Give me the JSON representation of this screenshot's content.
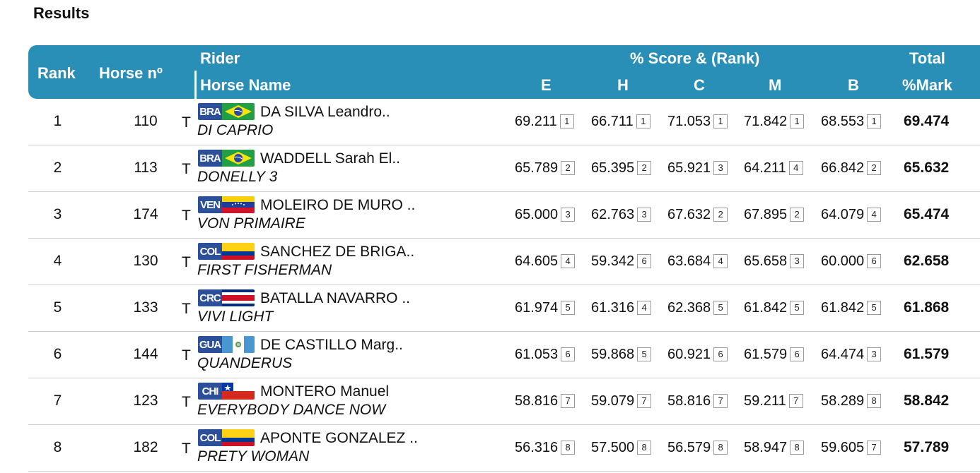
{
  "page": {
    "title": "Results"
  },
  "header": {
    "rank": "Rank",
    "horse_no": "Horse nº",
    "rider": "Rider",
    "horse_name": "Horse Name",
    "score_rank": "% Score & (Rank)",
    "judges": [
      "E",
      "H",
      "C",
      "M",
      "B"
    ],
    "total": "Total",
    "mark": "%Mark"
  },
  "colors": {
    "header_bg": "#2a8fb6",
    "flag_code_bg": "#2c4f9a"
  },
  "rows": [
    {
      "rank": "1",
      "horse_no": "110",
      "t": "T",
      "country": "BRA",
      "rider": "DA SILVA Leandro..",
      "horse": "DI CAPRIO",
      "scores": [
        {
          "s": "69.211",
          "r": "1"
        },
        {
          "s": "66.711",
          "r": "1"
        },
        {
          "s": "71.053",
          "r": "1"
        },
        {
          "s": "71.842",
          "r": "1"
        },
        {
          "s": "68.553",
          "r": "1"
        }
      ],
      "total": "69.474"
    },
    {
      "rank": "2",
      "horse_no": "113",
      "t": "T",
      "country": "BRA",
      "rider": "WADDELL Sarah El..",
      "horse": "DONELLY 3",
      "scores": [
        {
          "s": "65.789",
          "r": "2"
        },
        {
          "s": "65.395",
          "r": "2"
        },
        {
          "s": "65.921",
          "r": "3"
        },
        {
          "s": "64.211",
          "r": "4"
        },
        {
          "s": "66.842",
          "r": "2"
        }
      ],
      "total": "65.632"
    },
    {
      "rank": "3",
      "horse_no": "174",
      "t": "T",
      "country": "VEN",
      "rider": "MOLEIRO DE MURO ..",
      "horse": "VON PRIMAIRE",
      "scores": [
        {
          "s": "65.000",
          "r": "3"
        },
        {
          "s": "62.763",
          "r": "3"
        },
        {
          "s": "67.632",
          "r": "2"
        },
        {
          "s": "67.895",
          "r": "2"
        },
        {
          "s": "64.079",
          "r": "4"
        }
      ],
      "total": "65.474"
    },
    {
      "rank": "4",
      "horse_no": "130",
      "t": "T",
      "country": "COL",
      "rider": "SANCHEZ DE BRIGA..",
      "horse": "FIRST FISHERMAN",
      "scores": [
        {
          "s": "64.605",
          "r": "4"
        },
        {
          "s": "59.342",
          "r": "6"
        },
        {
          "s": "63.684",
          "r": "4"
        },
        {
          "s": "65.658",
          "r": "3"
        },
        {
          "s": "60.000",
          "r": "6"
        }
      ],
      "total": "62.658"
    },
    {
      "rank": "5",
      "horse_no": "133",
      "t": "T",
      "country": "CRC",
      "rider": "BATALLA NAVARRO ..",
      "horse": "VIVI LIGHT",
      "scores": [
        {
          "s": "61.974",
          "r": "5"
        },
        {
          "s": "61.316",
          "r": "4"
        },
        {
          "s": "62.368",
          "r": "5"
        },
        {
          "s": "61.842",
          "r": "5"
        },
        {
          "s": "61.842",
          "r": "5"
        }
      ],
      "total": "61.868"
    },
    {
      "rank": "6",
      "horse_no": "144",
      "t": "T",
      "country": "GUA",
      "rider": "DE CASTILLO Marg..",
      "horse": "QUANDERUS",
      "scores": [
        {
          "s": "61.053",
          "r": "6"
        },
        {
          "s": "59.868",
          "r": "5"
        },
        {
          "s": "60.921",
          "r": "6"
        },
        {
          "s": "61.579",
          "r": "6"
        },
        {
          "s": "64.474",
          "r": "3"
        }
      ],
      "total": "61.579"
    },
    {
      "rank": "7",
      "horse_no": "123",
      "t": "T",
      "country": "CHI",
      "rider": "MONTERO Manuel",
      "horse": "EVERYBODY DANCE NOW",
      "scores": [
        {
          "s": "58.816",
          "r": "7"
        },
        {
          "s": "59.079",
          "r": "7"
        },
        {
          "s": "58.816",
          "r": "7"
        },
        {
          "s": "59.211",
          "r": "7"
        },
        {
          "s": "58.289",
          "r": "8"
        }
      ],
      "total": "58.842"
    },
    {
      "rank": "8",
      "horse_no": "182",
      "t": "T",
      "country": "COL",
      "rider": "APONTE GONZALEZ ..",
      "horse": "PRETY WOMAN",
      "scores": [
        {
          "s": "56.316",
          "r": "8"
        },
        {
          "s": "57.500",
          "r": "8"
        },
        {
          "s": "56.579",
          "r": "8"
        },
        {
          "s": "58.947",
          "r": "8"
        },
        {
          "s": "59.605",
          "r": "7"
        }
      ],
      "total": "57.789"
    }
  ]
}
